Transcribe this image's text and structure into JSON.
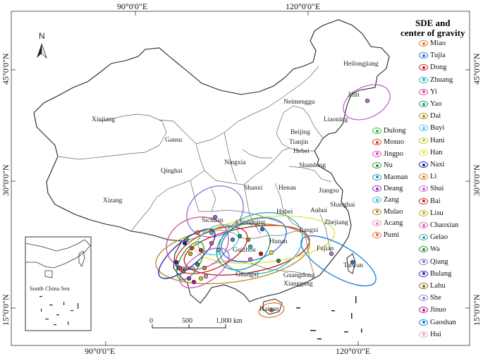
{
  "map": {
    "north_label": "N",
    "legend_title_line1": "SDE and",
    "legend_title_line2": "center of gravity",
    "inset_label": "South China Sea",
    "scale_labels": [
      "0",
      "500",
      "1,000 km"
    ],
    "coords": {
      "top_left": "90°0'0\"E",
      "top_right": "120°0'0\"E",
      "bottom_left": "90°0'0\"E",
      "bottom_right": "120°0'0\"E",
      "left_45": "45°0'0\"N",
      "left_30": "30°0'0\"N",
      "left_15": "15°0'0\"N",
      "right_45": "45°0'0\"N",
      "right_30": "30°0'0\"N",
      "right_15": "15°0'0\"N"
    },
    "provinces": [
      "Heilongjiang",
      "Jilin",
      "Liaoning",
      "Neimenggu",
      "Xinjiang",
      "Gansu",
      "Beijing",
      "Tianjin",
      "Hebei",
      "Qinghai",
      "Ningxia",
      "Shandong",
      "Xizang",
      "Shanxi",
      "Henan",
      "Jiangsu",
      "Shanghai",
      "Anhui",
      "Hubei",
      "Sichuan",
      "Chongqing",
      "Zhejiang",
      "Jiangxi",
      "Hunan",
      "Guizhou",
      "Fujian",
      "Taiwan",
      "Yunnan",
      "Guangxi",
      "Guangdong",
      "Xianggang",
      "Hainan"
    ]
  },
  "legend_right": [
    {
      "name": "Miao",
      "color": "#e07b22"
    },
    {
      "name": "Tujia",
      "color": "#2b6fd6"
    },
    {
      "name": "Dong",
      "color": "#c01818"
    },
    {
      "name": "Zhuang",
      "color": "#27b3c9"
    },
    {
      "name": "Yi",
      "color": "#d9479b"
    },
    {
      "name": "Yao",
      "color": "#1b9a6a"
    },
    {
      "name": "Dai",
      "color": "#b08a1a"
    },
    {
      "name": "Buyi",
      "color": "#44c8e0"
    },
    {
      "name": "Hani",
      "color": "#c9c61e"
    },
    {
      "name": "Han",
      "color": "#e3e03c"
    },
    {
      "name": "Naxi",
      "color": "#1a24a8"
    },
    {
      "name": "Li",
      "color": "#e8782e"
    },
    {
      "name": "Shui",
      "color": "#c464d4"
    },
    {
      "name": "Bai",
      "color": "#c22828"
    },
    {
      "name": "Lisu",
      "color": "#b5b521"
    },
    {
      "name": "Chaoxian",
      "color": "#d85ac5"
    },
    {
      "name": "Gelao",
      "color": "#3aa6a0"
    },
    {
      "name": "Wa",
      "color": "#2e8a3a"
    },
    {
      "name": "Qiang",
      "color": "#8b6fd0"
    },
    {
      "name": "Bulang",
      "color": "#3a1fb8"
    },
    {
      "name": "Lahu",
      "color": "#8a6a24"
    },
    {
      "name": "She",
      "color": "#9b7fd6"
    },
    {
      "name": "Jinuo",
      "color": "#b3188f"
    },
    {
      "name": "Gaoshan",
      "color": "#1f7bd0"
    },
    {
      "name": "Hui",
      "color": "#e9a3d9"
    }
  ],
  "legend_left": [
    {
      "name": "Dulong",
      "color": "#2eb83a"
    },
    {
      "name": "Mosuo",
      "color": "#d2401a"
    },
    {
      "name": "Jingpo",
      "color": "#d04fc4"
    },
    {
      "name": "Nu",
      "color": "#2c9a2c"
    },
    {
      "name": "Maonan",
      "color": "#2a8fc4"
    },
    {
      "name": "Deang",
      "color": "#9a2bb8"
    },
    {
      "name": "Zang",
      "color": "#3fb9d9"
    },
    {
      "name": "Mulao",
      "color": "#a88a1c"
    },
    {
      "name": "Acang",
      "color": "#e08fb0"
    },
    {
      "name": "Pumi",
      "color": "#e06a3a"
    }
  ]
}
